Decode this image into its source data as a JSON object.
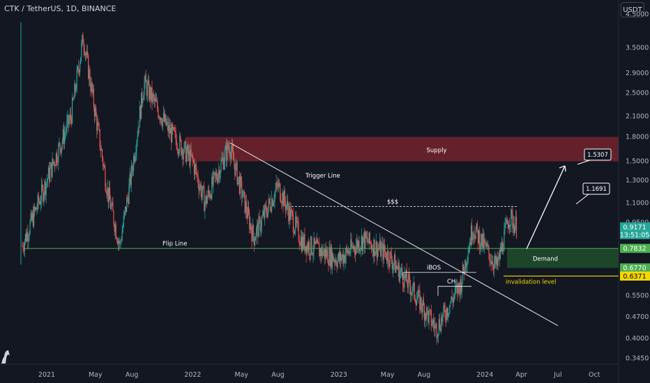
{
  "header": {
    "title": "CTK / TetherUS, 1D, BINANCE",
    "currency": "USDT"
  },
  "colors": {
    "background": "#131722",
    "up": "#26a69a",
    "down": "#ef5350",
    "supply_zone": "#7b2430",
    "demand_zone": "#1e4a2a",
    "flip_line": "#4caf50",
    "invalidation_line": "#f5d800",
    "annotation": "#ffffff"
  },
  "chart_data": {
    "type": "candlestick",
    "scale": "log",
    "ylim": [
      0.33,
      5.0
    ],
    "y_ticks": [
      "4.5000",
      "3.5000",
      "2.9000",
      "2.5000",
      "2.1000",
      "1.8000",
      "1.5000",
      "1.3000",
      "1.1000",
      "0.9500",
      "0.6770",
      "0.5500",
      "0.4700",
      "0.4000",
      "0.3450"
    ],
    "x_ticks": [
      "2021",
      "May",
      "Aug",
      "2022",
      "May",
      "Aug",
      "2023",
      "May",
      "Aug",
      "2024",
      "Apr",
      "Jul",
      "Oct"
    ],
    "price_path": [
      [
        "2020-11",
        0.8
      ],
      [
        "2021-01",
        1.3
      ],
      [
        "2021-03",
        2.1
      ],
      [
        "2021-04",
        3.8
      ],
      [
        "2021-06",
        1.2
      ],
      [
        "2021-07",
        0.8
      ],
      [
        "2021-08",
        1.4
      ],
      [
        "2021-09",
        2.7
      ],
      [
        "2021-11",
        1.9
      ],
      [
        "2022-01",
        1.5
      ],
      [
        "2022-02",
        1.1
      ],
      [
        "2022-04",
        1.7
      ],
      [
        "2022-06",
        0.85
      ],
      [
        "2022-08",
        1.25
      ],
      [
        "2022-10",
        0.82
      ],
      [
        "2023-01",
        0.72
      ],
      [
        "2023-03",
        0.84
      ],
      [
        "2023-05",
        0.75
      ],
      [
        "2023-07",
        0.58
      ],
      [
        "2023-09",
        0.43
      ],
      [
        "2023-11",
        0.6
      ],
      [
        "2023-12",
        0.92
      ],
      [
        "2024-02",
        0.68
      ],
      [
        "2024-03",
        1.0
      ],
      [
        "2024-03-20",
        0.9171
      ]
    ],
    "price_tags": [
      {
        "value": 0.9171,
        "label": "0.9171",
        "sublabel": "13:51:05",
        "bg": "#26a69a",
        "fg": "#ffffff"
      },
      {
        "value": 0.7832,
        "label": "0.7832",
        "bg": "#4caf50",
        "fg": "#ffffff"
      },
      {
        "value": 0.677,
        "label": "0.6770",
        "bg": "#4caf50",
        "fg": "#ffffff"
      },
      {
        "value": 0.6371,
        "label": "0.6371",
        "bg": "#f5d800",
        "fg": "#000000"
      }
    ],
    "annotations": {
      "supply_label": "Supply",
      "demand_label": "Demand",
      "flip_line_label": "Flip Line",
      "trigger_line_label": "Trigger Line",
      "liquidity_label": "$$$",
      "ibos_label": "iBOS",
      "ch_label": "CH",
      "invalidation_label": "invalidation level",
      "target_1": "1.1691",
      "target_2": "1.5307"
    }
  }
}
